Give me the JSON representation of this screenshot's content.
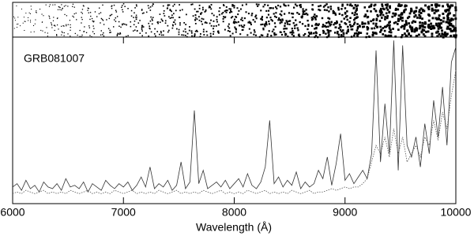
{
  "chart_data": {
    "type": "line",
    "title": "GRB081007",
    "xlabel": "Wavelength (Å)",
    "xlim": [
      6000,
      10000
    ],
    "xticks": [
      6000,
      7000,
      8000,
      9000,
      10000
    ],
    "ylim": [
      0,
      100
    ],
    "x": [
      6000,
      6040,
      6080,
      6120,
      6160,
      6200,
      6240,
      6280,
      6320,
      6360,
      6400,
      6440,
      6480,
      6520,
      6560,
      6600,
      6640,
      6680,
      6720,
      6760,
      6800,
      6840,
      6880,
      6920,
      6960,
      7000,
      7040,
      7080,
      7120,
      7160,
      7200,
      7240,
      7280,
      7320,
      7360,
      7400,
      7440,
      7480,
      7520,
      7560,
      7600,
      7640,
      7680,
      7720,
      7760,
      7800,
      7840,
      7880,
      7920,
      7960,
      8000,
      8040,
      8080,
      8120,
      8160,
      8200,
      8240,
      8280,
      8320,
      8360,
      8400,
      8440,
      8480,
      8520,
      8560,
      8600,
      8640,
      8680,
      8720,
      8760,
      8800,
      8840,
      8880,
      8920,
      8960,
      9000,
      9040,
      9080,
      9120,
      9160,
      9200,
      9240,
      9280,
      9320,
      9360,
      9400,
      9440,
      9480,
      9520,
      9560,
      9600,
      9640,
      9680,
      9720,
      9760,
      9800,
      9840,
      9880,
      9920,
      9960,
      10000
    ],
    "series": [
      {
        "color": "#333333",
        "style": "solid",
        "values": [
          10,
          12,
          8,
          14,
          9,
          11,
          7,
          13,
          10,
          9,
          12,
          8,
          15,
          10,
          11,
          9,
          13,
          7,
          12,
          10,
          8,
          14,
          11,
          9,
          12,
          10,
          13,
          8,
          11,
          16,
          10,
          22,
          9,
          12,
          10,
          14,
          8,
          11,
          25,
          9,
          13,
          56,
          12,
          20,
          9,
          11,
          13,
          10,
          14,
          9,
          12,
          15,
          10,
          18,
          11,
          9,
          13,
          22,
          50,
          12,
          16,
          10,
          14,
          11,
          19,
          9,
          13,
          10,
          12,
          20,
          15,
          28,
          11,
          24,
          42,
          14,
          18,
          12,
          16,
          20,
          15,
          30,
          92,
          25,
          60,
          30,
          98,
          20,
          95,
          35,
          28,
          40,
          22,
          48,
          30,
          62,
          40,
          70,
          35,
          85,
          94
        ]
      },
      {
        "color": "#555555",
        "style": "dotted",
        "values": [
          6,
          7,
          6,
          8,
          7,
          6,
          7,
          8,
          6,
          7,
          6,
          7,
          6,
          8,
          7,
          6,
          7,
          8,
          6,
          7,
          6,
          7,
          6,
          8,
          7,
          6,
          7,
          8,
          6,
          7,
          6,
          7,
          6,
          8,
          7,
          6,
          7,
          8,
          6,
          7,
          6,
          7,
          6,
          8,
          7,
          6,
          7,
          8,
          6,
          7,
          6,
          7,
          6,
          8,
          7,
          6,
          7,
          8,
          6,
          7,
          6,
          7,
          6,
          8,
          7,
          6,
          7,
          8,
          6,
          7,
          7,
          8,
          9,
          8,
          9,
          10,
          9,
          10,
          10,
          12,
          15,
          25,
          35,
          30,
          40,
          28,
          45,
          30,
          40,
          25,
          30,
          35,
          28,
          40,
          35,
          50,
          38,
          55,
          45,
          65,
          80
        ]
      }
    ]
  }
}
